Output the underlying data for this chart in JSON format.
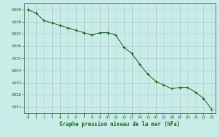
{
  "x": [
    0,
    1,
    2,
    3,
    4,
    5,
    6,
    7,
    8,
    9,
    10,
    11,
    12,
    13,
    14,
    15,
    16,
    17,
    18,
    19,
    20,
    21,
    22,
    23
  ],
  "y": [
    1039.0,
    1038.7,
    1038.1,
    1037.9,
    1037.7,
    1037.5,
    1037.3,
    1037.1,
    1036.9,
    1037.1,
    1037.1,
    1036.9,
    1035.9,
    1035.4,
    1034.5,
    1033.7,
    1033.1,
    1032.8,
    1032.5,
    1032.6,
    1032.6,
    1032.2,
    1031.7,
    1030.8
  ],
  "line_color": "#1a6b1a",
  "marker": "+",
  "marker_color": "#1a6b1a",
  "bg_color": "#c8ece8",
  "grid_color": "#b0c8c4",
  "text_color": "#1a6b1a",
  "xlabel": "Graphe pression niveau de la mer (hPa)",
  "ylim": [
    1030.5,
    1039.5
  ],
  "yticks": [
    1031,
    1032,
    1033,
    1034,
    1035,
    1036,
    1037,
    1038,
    1039
  ],
  "xticks": [
    0,
    1,
    2,
    3,
    4,
    5,
    6,
    7,
    8,
    9,
    10,
    11,
    12,
    13,
    14,
    15,
    16,
    17,
    18,
    19,
    20,
    21,
    22,
    23
  ]
}
